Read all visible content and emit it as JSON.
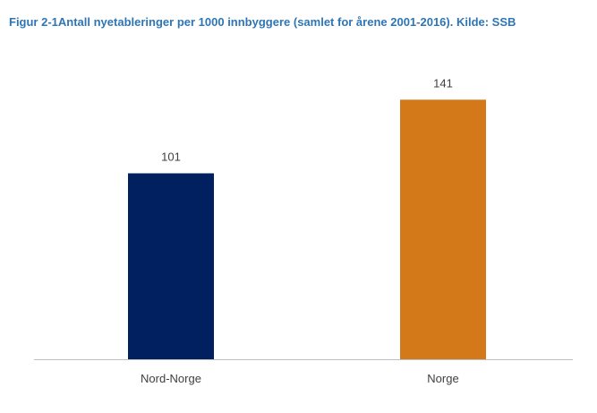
{
  "chart_data": {
    "type": "bar",
    "title": "Figur 2-1Antall nyetableringer per 1000 innbyggere (samlet for årene 2001-2016). Kilde: SSB",
    "categories": [
      "Nord-Norge",
      "Norge"
    ],
    "values": [
      101,
      141
    ],
    "data_labels": [
      "101",
      "141"
    ],
    "bar_colors": [
      "#002060",
      "#D4791A"
    ],
    "ylim": [
      0,
      146
    ],
    "grid": false,
    "legend": "none",
    "xlabel": "",
    "ylabel": ""
  },
  "colors": {
    "title": "#2E75B6",
    "axis_line": "#BFBFBF",
    "label_text": "#404040"
  }
}
